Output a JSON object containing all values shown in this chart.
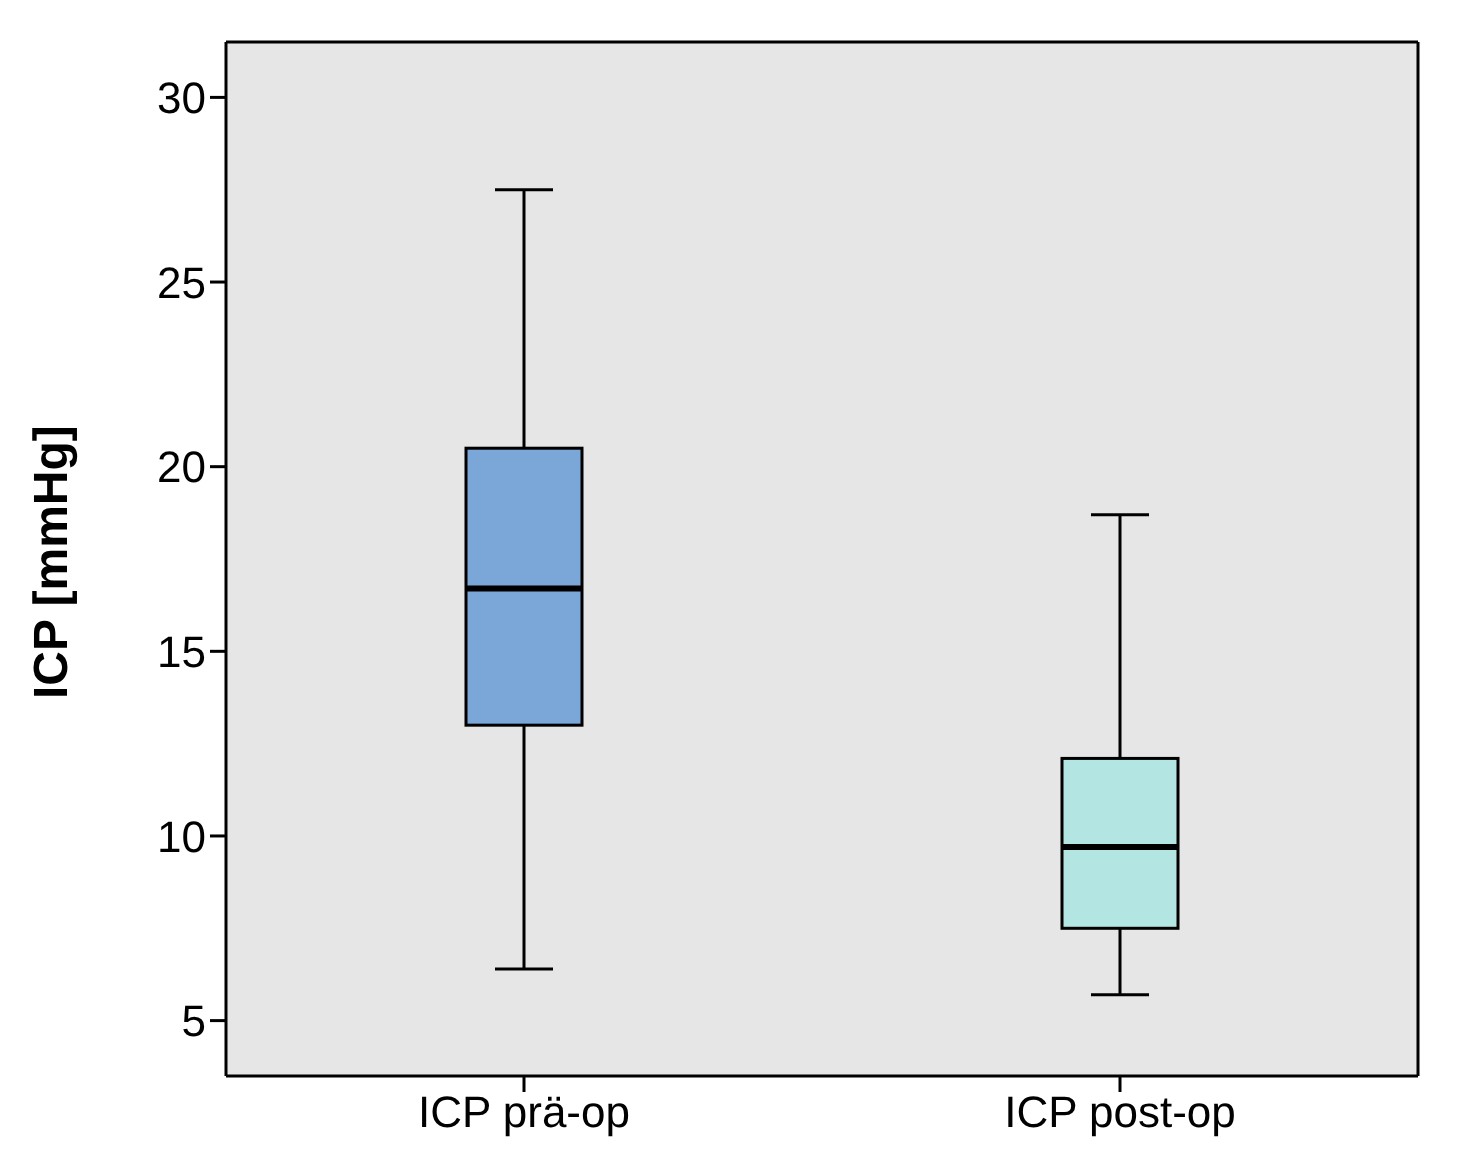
{
  "chart_data": {
    "type": "box",
    "ylabel": "ICP [mmHg]",
    "categories": [
      "ICP prä-op",
      "ICP post-op"
    ],
    "boxes": [
      {
        "low": 6.4,
        "q1": 13.0,
        "median": 16.7,
        "q3": 20.5,
        "high": 27.5
      },
      {
        "low": 5.7,
        "q1": 7.5,
        "median": 9.7,
        "q3": 12.1,
        "high": 18.7
      }
    ],
    "colors": [
      "#7aa6d8",
      "#b3e5e3"
    ],
    "ylim": [
      3.5,
      31.5
    ],
    "yticks": [
      5,
      10,
      15,
      20,
      25,
      30
    ],
    "grid": false
  }
}
